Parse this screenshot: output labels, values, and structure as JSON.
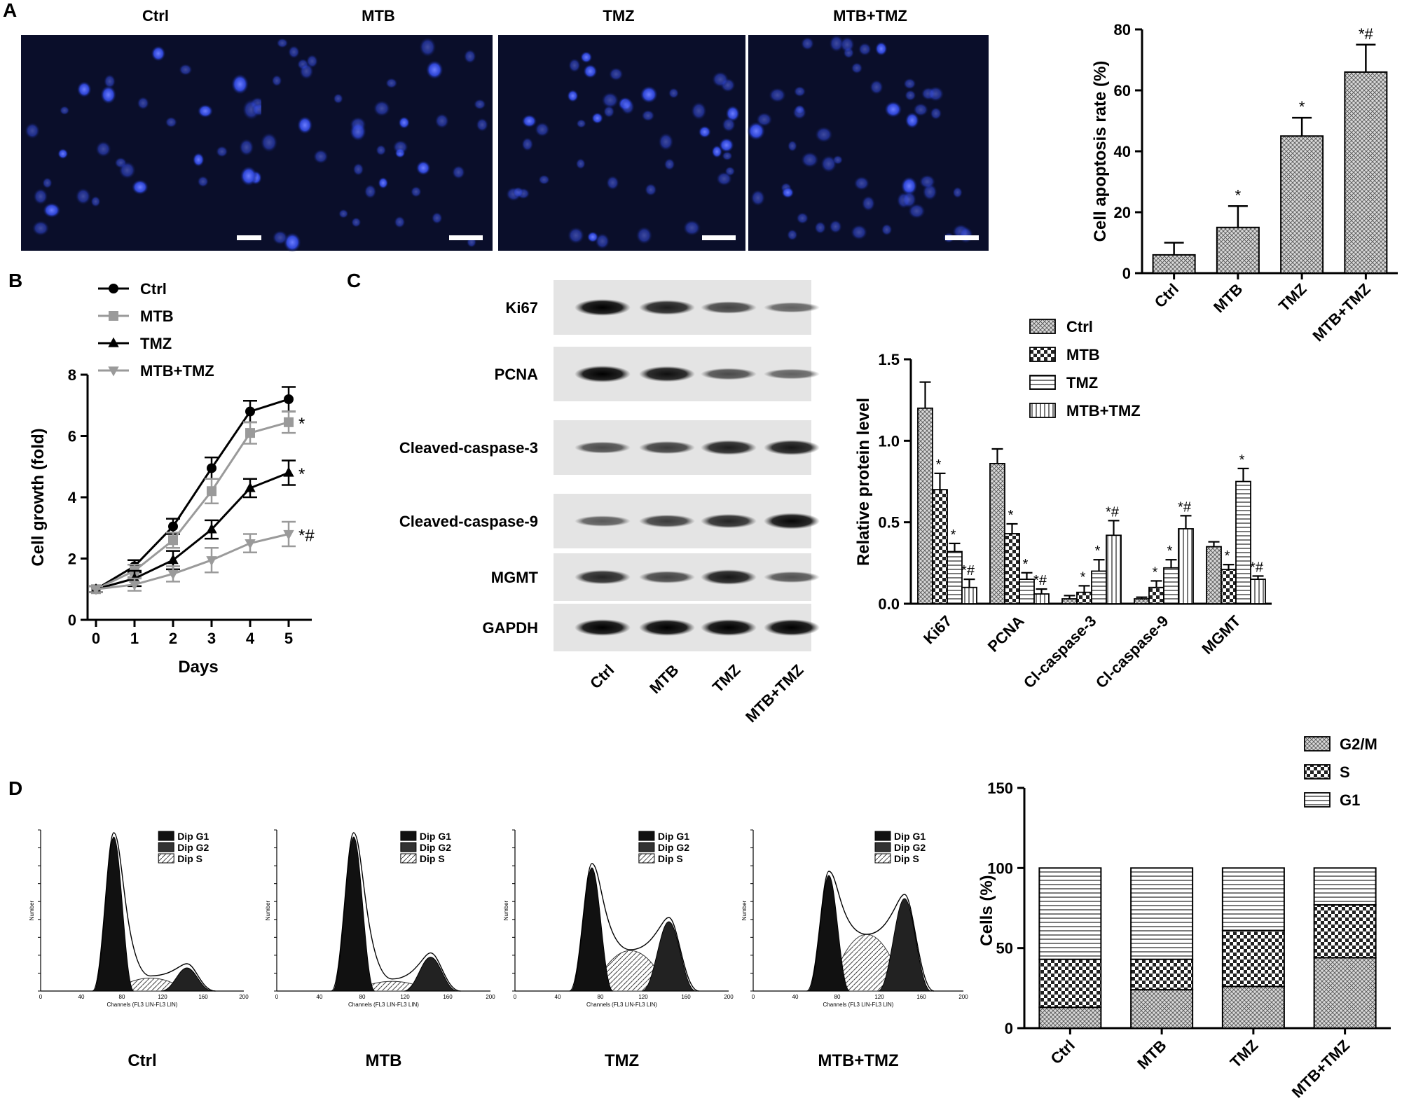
{
  "panel_labels": [
    "A",
    "B",
    "C",
    "D"
  ],
  "panelA": {
    "image_titles": [
      "Ctrl",
      "MTB",
      "TMZ",
      "MTB+TMZ"
    ]
  },
  "panelC_blot": {
    "proteins": [
      "Ki67",
      "PCNA",
      "Cleaved-caspase-3",
      "Cleaved-caspase-9",
      "MGMT",
      "GAPDH"
    ],
    "lanes": [
      "Ctrl",
      "MTB",
      "TMZ",
      "MTB+TMZ"
    ],
    "band_intensity": [
      [
        1.0,
        0.8,
        0.55,
        0.35
      ],
      [
        1.0,
        0.9,
        0.5,
        0.35
      ],
      [
        0.5,
        0.6,
        0.8,
        0.85
      ],
      [
        0.4,
        0.6,
        0.75,
        0.95
      ],
      [
        0.75,
        0.55,
        0.85,
        0.45
      ],
      [
        1.0,
        1.0,
        1.0,
        1.0
      ]
    ]
  },
  "panelD_flow": {
    "legend": [
      "Dip G1",
      "Dip G2",
      "Dip S"
    ],
    "x_axis_label": "Channels (FL3 LIN-FL3 LIN)",
    "y_axis_label": "Number",
    "x_ticks": [
      "0",
      "40",
      "80",
      "120",
      "160",
      "200"
    ],
    "groups": [
      "Ctrl",
      "MTB",
      "TMZ",
      "MTB+TMZ"
    ],
    "g1_height": [
      1.0,
      1.0,
      0.8,
      0.75
    ],
    "s_height": [
      0.08,
      0.06,
      0.25,
      0.35
    ],
    "g2_height": [
      0.15,
      0.22,
      0.45,
      0.6
    ]
  },
  "chart_data": [
    {
      "type": "bar",
      "categories": [
        "Ctrl",
        "MTB",
        "TMZ",
        "MTB+TMZ"
      ],
      "values": [
        6,
        15,
        45,
        66
      ],
      "errors": [
        4,
        7,
        6,
        9
      ],
      "annotations": [
        "",
        "*",
        "*",
        "*#"
      ],
      "ylabel": "Cell apoptosis rate (%)",
      "ylim": [
        0,
        80
      ],
      "yticks": [
        0,
        20,
        40,
        60,
        80
      ]
    },
    {
      "type": "line",
      "x": [
        0,
        1,
        2,
        3,
        4,
        5
      ],
      "xlabel": "Days",
      "ylabel": "Cell growth (fold)",
      "ylim": [
        0,
        8
      ],
      "yticks": [
        0,
        2,
        4,
        6,
        8
      ],
      "series": [
        {
          "name": "Ctrl",
          "values": [
            1.0,
            1.75,
            3.05,
            4.95,
            6.8,
            7.2
          ],
          "errors": [
            0.1,
            0.2,
            0.25,
            0.35,
            0.35,
            0.4
          ],
          "marker": "circle",
          "color": "#000000",
          "annotation": ""
        },
        {
          "name": "MTB",
          "values": [
            1.0,
            1.6,
            2.6,
            4.2,
            6.1,
            6.45
          ],
          "errors": [
            0.1,
            0.2,
            0.25,
            0.4,
            0.35,
            0.35
          ],
          "marker": "square",
          "color": "#9a9a9a",
          "annotation": "*"
        },
        {
          "name": "TMZ",
          "values": [
            1.0,
            1.35,
            1.95,
            2.95,
            4.3,
            4.8
          ],
          "errors": [
            0.1,
            0.25,
            0.3,
            0.3,
            0.3,
            0.4
          ],
          "marker": "triangle",
          "color": "#000000",
          "annotation": "*"
        },
        {
          "name": "MTB+TMZ",
          "values": [
            1.0,
            1.15,
            1.5,
            1.95,
            2.5,
            2.8
          ],
          "errors": [
            0.1,
            0.2,
            0.25,
            0.4,
            0.3,
            0.4
          ],
          "marker": "triangle-down",
          "color": "#9a9a9a",
          "annotation": "*#"
        }
      ]
    },
    {
      "type": "bar",
      "categories": [
        "Ki67",
        "PCNA",
        "Cl-caspase-3",
        "Cl-caspase-9",
        "MGMT"
      ],
      "ylabel": "Relative protein level",
      "ylim": [
        0,
        1.5
      ],
      "yticks": [
        "0.0",
        "0.5",
        "1.0",
        "1.5"
      ],
      "legend": "top-right",
      "series": [
        {
          "name": "Ctrl",
          "values": [
            1.2,
            0.86,
            0.03,
            0.03,
            0.35
          ],
          "errors": [
            0.16,
            0.09,
            0.02,
            0.01,
            0.03
          ],
          "annotations": [
            "",
            "",
            "",
            "",
            ""
          ]
        },
        {
          "name": "MTB",
          "values": [
            0.7,
            0.43,
            0.07,
            0.1,
            0.21
          ],
          "errors": [
            0.1,
            0.06,
            0.04,
            0.04,
            0.03
          ],
          "annotations": [
            "*",
            "*",
            "*",
            "*",
            "*"
          ]
        },
        {
          "name": "TMZ",
          "values": [
            0.32,
            0.15,
            0.2,
            0.22,
            0.75
          ],
          "errors": [
            0.05,
            0.04,
            0.07,
            0.05,
            0.08
          ],
          "annotations": [
            "*",
            "*",
            "*",
            "*",
            "*"
          ]
        },
        {
          "name": "MTB+TMZ",
          "values": [
            0.1,
            0.06,
            0.42,
            0.46,
            0.15
          ],
          "errors": [
            0.05,
            0.03,
            0.09,
            0.08,
            0.02
          ],
          "annotations": [
            "*#",
            "*#",
            "*#",
            "*#",
            "*#"
          ]
        }
      ]
    },
    {
      "type": "bar",
      "stacked": true,
      "categories": [
        "Ctrl",
        "MTB",
        "TMZ",
        "MTB+TMZ"
      ],
      "ylabel": "Cells (%)",
      "ylim": [
        0,
        150
      ],
      "yticks": [
        0,
        50,
        100,
        150
      ],
      "legend": "top-right",
      "legend_order": [
        "G2/M",
        "S",
        "G1"
      ],
      "series": [
        {
          "name": "G2/M",
          "values": [
            13,
            24,
            26,
            44
          ]
        },
        {
          "name": "S",
          "values": [
            30,
            19,
            35,
            33
          ]
        },
        {
          "name": "G1",
          "values": [
            57,
            57,
            39,
            23
          ]
        }
      ]
    }
  ]
}
